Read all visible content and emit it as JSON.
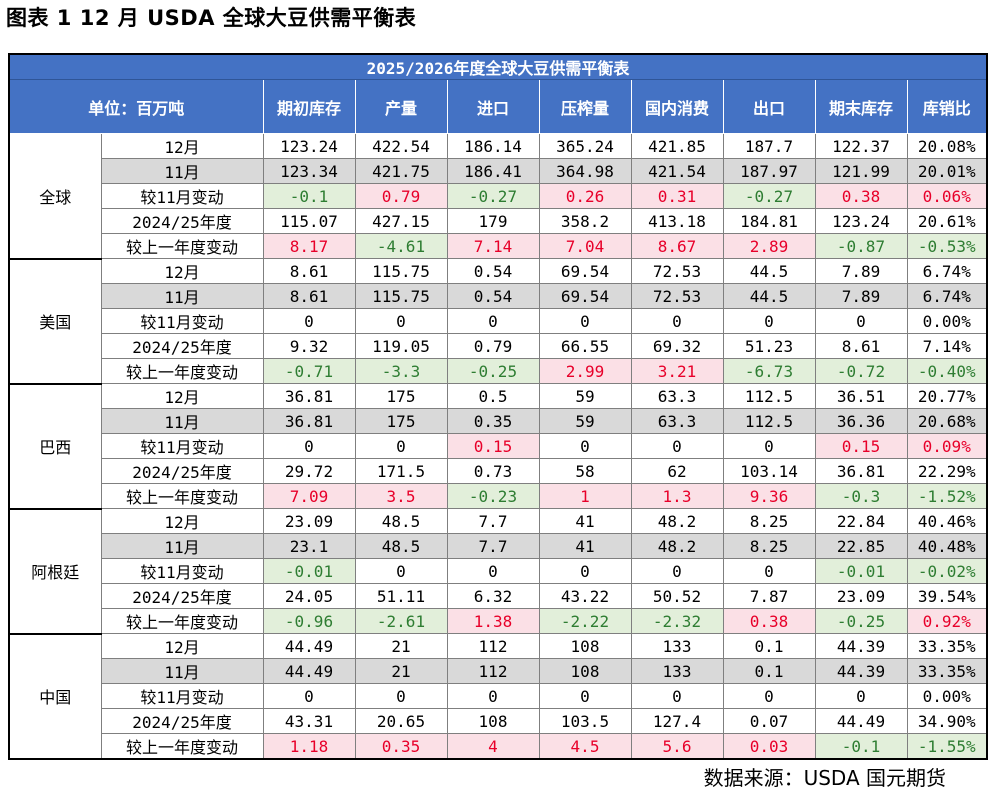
{
  "figure_title": "图表 1 12 月 USDA 全球大豆供需平衡表",
  "table_title": "2025/2026年度全球大豆供需平衡表",
  "header_unit": "单位：百万吨",
  "columns": [
    "期初库存",
    "产量",
    "进口",
    "压榨量",
    "国内消费",
    "出口",
    "期末库存",
    "库销比"
  ],
  "groups": [
    {
      "region": "全球",
      "rows": [
        {
          "label": "12月",
          "values": [
            "123.24",
            "422.54",
            "186.14",
            "365.24",
            "421.85",
            "187.7",
            "122.37",
            "20.08%"
          ]
        },
        {
          "label": "11月",
          "values": [
            "123.34",
            "421.75",
            "186.41",
            "364.98",
            "421.54",
            "187.97",
            "121.99",
            "20.01%"
          ]
        },
        {
          "label": "较11月变动",
          "values": [
            "-0.1",
            "0.79",
            "-0.27",
            "0.26",
            "0.31",
            "-0.27",
            "0.38",
            "0.06%"
          ]
        },
        {
          "label": "2024/25年度",
          "values": [
            "115.07",
            "427.15",
            "179",
            "358.2",
            "413.18",
            "184.81",
            "123.24",
            "20.61%"
          ]
        },
        {
          "label": "较上一年度变动",
          "values": [
            "8.17",
            "-4.61",
            "7.14",
            "7.04",
            "8.67",
            "2.89",
            "-0.87",
            "-0.53%"
          ]
        }
      ]
    },
    {
      "region": "美国",
      "rows": [
        {
          "label": "12月",
          "values": [
            "8.61",
            "115.75",
            "0.54",
            "69.54",
            "72.53",
            "44.5",
            "7.89",
            "6.74%"
          ]
        },
        {
          "label": "11月",
          "values": [
            "8.61",
            "115.75",
            "0.54",
            "69.54",
            "72.53",
            "44.5",
            "7.89",
            "6.74%"
          ]
        },
        {
          "label": "较11月变动",
          "values": [
            "0",
            "0",
            "0",
            "0",
            "0",
            "0",
            "0",
            "0.00%"
          ]
        },
        {
          "label": "2024/25年度",
          "values": [
            "9.32",
            "119.05",
            "0.79",
            "66.55",
            "69.32",
            "51.23",
            "8.61",
            "7.14%"
          ]
        },
        {
          "label": "较上一年度变动",
          "values": [
            "-0.71",
            "-3.3",
            "-0.25",
            "2.99",
            "3.21",
            "-6.73",
            "-0.72",
            "-0.40%"
          ]
        }
      ]
    },
    {
      "region": "巴西",
      "rows": [
        {
          "label": "12月",
          "values": [
            "36.81",
            "175",
            "0.5",
            "59",
            "63.3",
            "112.5",
            "36.51",
            "20.77%"
          ]
        },
        {
          "label": "11月",
          "values": [
            "36.81",
            "175",
            "0.35",
            "59",
            "63.3",
            "112.5",
            "36.36",
            "20.68%"
          ]
        },
        {
          "label": "较11月变动",
          "values": [
            "0",
            "0",
            "0.15",
            "0",
            "0",
            "0",
            "0.15",
            "0.09%"
          ]
        },
        {
          "label": "2024/25年度",
          "values": [
            "29.72",
            "171.5",
            "0.73",
            "58",
            "62",
            "103.14",
            "36.81",
            "22.29%"
          ]
        },
        {
          "label": "较上一年度变动",
          "values": [
            "7.09",
            "3.5",
            "-0.23",
            "1",
            "1.3",
            "9.36",
            "-0.3",
            "-1.52%"
          ]
        }
      ]
    },
    {
      "region": "阿根廷",
      "rows": [
        {
          "label": "12月",
          "values": [
            "23.09",
            "48.5",
            "7.7",
            "41",
            "48.2",
            "8.25",
            "22.84",
            "40.46%"
          ]
        },
        {
          "label": "11月",
          "values": [
            "23.1",
            "48.5",
            "7.7",
            "41",
            "48.2",
            "8.25",
            "22.85",
            "40.48%"
          ]
        },
        {
          "label": "较11月变动",
          "values": [
            "-0.01",
            "0",
            "0",
            "0",
            "0",
            "0",
            "-0.01",
            "-0.02%"
          ]
        },
        {
          "label": "2024/25年度",
          "values": [
            "24.05",
            "51.11",
            "6.32",
            "43.22",
            "50.52",
            "7.87",
            "23.09",
            "39.54%"
          ]
        },
        {
          "label": "较上一年度变动",
          "values": [
            "-0.96",
            "-2.61",
            "1.38",
            "-2.22",
            "-2.32",
            "0.38",
            "-0.25",
            "0.92%"
          ]
        }
      ]
    },
    {
      "region": "中国",
      "rows": [
        {
          "label": "12月",
          "values": [
            "44.49",
            "21",
            "112",
            "108",
            "133",
            "0.1",
            "44.39",
            "33.35%"
          ]
        },
        {
          "label": "11月",
          "values": [
            "44.49",
            "21",
            "112",
            "108",
            "133",
            "0.1",
            "44.39",
            "33.35%"
          ]
        },
        {
          "label": "较11月变动",
          "values": [
            "0",
            "0",
            "0",
            "0",
            "0",
            "0",
            "0",
            "0.00%"
          ]
        },
        {
          "label": "2024/25年度",
          "values": [
            "43.31",
            "20.65",
            "108",
            "103.5",
            "127.4",
            "0.07",
            "44.49",
            "34.90%"
          ]
        },
        {
          "label": "较上一年度变动",
          "values": [
            "1.18",
            "0.35",
            "4",
            "4.5",
            "5.6",
            "0.03",
            "-0.1",
            "-1.55%"
          ]
        }
      ]
    }
  ],
  "source": "数据来源：USDA 国元期货",
  "colors": {
    "header_bg": "#4472c4",
    "increase_text": "#e8002a",
    "increase_bg": "#fbe0e6",
    "decrease_text": "#2e7d32",
    "decrease_bg": "#e2efda",
    "alt_row_bg": "#d9d9d9"
  }
}
